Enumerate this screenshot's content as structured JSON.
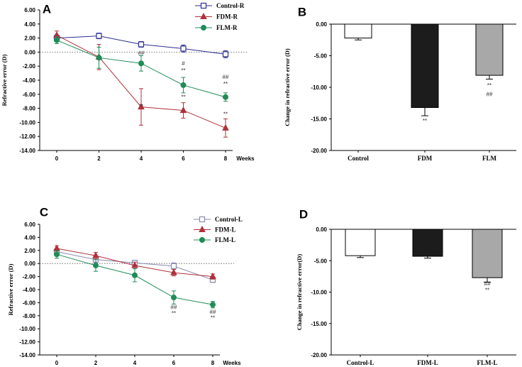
{
  "chart_data": [
    {
      "id": "A",
      "type": "line",
      "panel_label": "A",
      "ylabel": "Refractive error (D)",
      "xlabel": "Weeks",
      "x": [
        0,
        2,
        4,
        6,
        8
      ],
      "x_tick_labels": [
        "0",
        "2",
        "4",
        "6",
        "8"
      ],
      "ylim": [
        -14,
        6
      ],
      "y_tick_labels": [
        "6.00",
        "4.00",
        "2.00",
        "0.00",
        "-2.00",
        "-4.00",
        "-6.00",
        "-8.00",
        "-10.00",
        "-12.00",
        "-14.00"
      ],
      "series": [
        {
          "name": "Control-R",
          "color": "#2b2d8f",
          "marker": "square-open",
          "values": [
            2.0,
            2.3,
            1.1,
            0.5,
            -0.3
          ],
          "errors": [
            0.4,
            0.4,
            0.4,
            0.5,
            0.5
          ]
        },
        {
          "name": "FDM-R",
          "color": "#b0303a",
          "marker": "triangle",
          "values": [
            2.4,
            -0.7,
            -7.8,
            -8.3,
            -10.8
          ],
          "errors": [
            0.6,
            1.8,
            2.6,
            1.1,
            1.3
          ]
        },
        {
          "name": "FLM-R",
          "color": "#1f8c57",
          "marker": "circle",
          "values": [
            1.7,
            -0.8,
            -1.6,
            -4.7,
            -6.4
          ],
          "errors": [
            0.5,
            1.5,
            1.1,
            1.1,
            0.6
          ]
        }
      ],
      "annotations": [
        {
          "x": 4,
          "y": -0.4,
          "text": "##"
        },
        {
          "x": 4,
          "y": -8.0,
          "text": "**"
        },
        {
          "x": 6,
          "y": -1.9,
          "text": "#"
        },
        {
          "x": 6,
          "y": -2.9,
          "text": "**"
        },
        {
          "x": 6,
          "y": -6.7,
          "text": "**"
        },
        {
          "x": 8,
          "y": -3.8,
          "text": "##"
        },
        {
          "x": 8,
          "y": -4.8,
          "text": "**"
        },
        {
          "x": 8,
          "y": -9.1,
          "text": "**"
        }
      ]
    },
    {
      "id": "B",
      "type": "bar",
      "panel_label": "B",
      "ylabel": "Change in refractive error (D)",
      "categories": [
        "Control",
        "FDM",
        "FLM"
      ],
      "values": [
        -2.2,
        -13.2,
        -8.1
      ],
      "errors": [
        0.3,
        1.3,
        0.6
      ],
      "colors": [
        "#ffffff",
        "#1c1c1c",
        "#a8a8a8"
      ],
      "ylim": [
        -20,
        0
      ],
      "y_tick_labels": [
        "0.00",
        "-5.00",
        "-10.00",
        "-15.00",
        "-20.00"
      ],
      "annotations": [
        {
          "bar": 1,
          "y": -15.6,
          "text": "**"
        },
        {
          "bar": 2,
          "y": -10.0,
          "text": "**"
        },
        {
          "bar": 2,
          "y": -11.4,
          "text": "##"
        }
      ]
    },
    {
      "id": "C",
      "type": "line",
      "panel_label": "C",
      "ylabel": "Refractive error (D)",
      "xlabel": "Weeks",
      "x": [
        0,
        2,
        4,
        6,
        8
      ],
      "x_tick_labels": [
        "0",
        "2",
        "4",
        "6",
        "8"
      ],
      "ylim": [
        -14,
        6
      ],
      "y_tick_labels": [
        "6.00",
        "4.00",
        "2.00",
        "0.00",
        "-2.00",
        "-4.00",
        "-6.00",
        "-8.00",
        "-10.00",
        "-12.00",
        "-14.00"
      ],
      "series": [
        {
          "name": "Control-L",
          "color": "#8a8ab0",
          "marker": "square-open",
          "values": [
            1.8,
            0.6,
            0.1,
            -0.4,
            -2.5
          ],
          "errors": [
            0.4,
            0.5,
            0.4,
            0.5,
            0.4
          ]
        },
        {
          "name": "FDM-L",
          "color": "#b0303a",
          "marker": "triangle",
          "values": [
            2.3,
            1.2,
            -0.3,
            -1.4,
            -2.0
          ],
          "errors": [
            0.4,
            0.5,
            0.5,
            0.5,
            0.4
          ]
        },
        {
          "name": "FLM-L",
          "color": "#1f8c57",
          "marker": "circle",
          "values": [
            1.4,
            -0.3,
            -1.8,
            -5.2,
            -6.3
          ],
          "errors": [
            0.6,
            0.9,
            1.0,
            1.0,
            0.5
          ]
        }
      ],
      "annotations": [
        {
          "x": 6,
          "y": -7.0,
          "text": "##"
        },
        {
          "x": 6,
          "y": -7.9,
          "text": "**"
        },
        {
          "x": 8,
          "y": -7.7,
          "text": "##"
        },
        {
          "x": 8,
          "y": -8.6,
          "text": "**"
        }
      ]
    },
    {
      "id": "D",
      "type": "bar",
      "panel_label": "D",
      "ylabel": "Change in refractive error(D)",
      "categories": [
        "Control-L",
        "FDM-L",
        "FLM-L"
      ],
      "values": [
        -4.2,
        -4.3,
        -7.7
      ],
      "errors": [
        0.3,
        0.3,
        0.7
      ],
      "colors": [
        "#ffffff",
        "#1c1c1c",
        "#a8a8a8"
      ],
      "ylim": [
        -20,
        0
      ],
      "y_tick_labels": [
        "0.00",
        "-5.00",
        "-10.00",
        "-15.00",
        "-20.00"
      ],
      "annotations": [
        {
          "bar": 2,
          "y": -9.0,
          "text": "##"
        },
        {
          "bar": 2,
          "y": -10.0,
          "text": "**"
        }
      ]
    }
  ]
}
